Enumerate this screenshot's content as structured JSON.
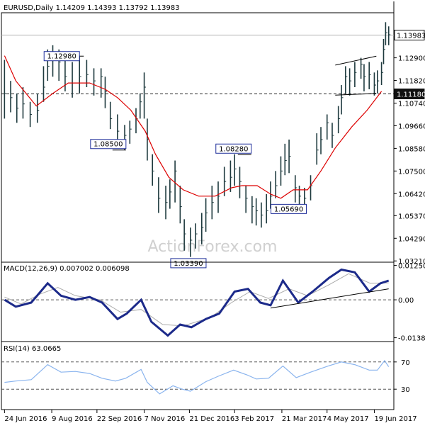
{
  "chart_data": [
    {
      "type": "ohlc-bar",
      "title": "EURUSD,Daily  1.14209 1.14393 1.13792 1.13983",
      "symbol": "EURUSD",
      "timeframe": "Daily",
      "last_bar": {
        "open": 1.14209,
        "high": 1.14393,
        "low": 1.13792,
        "close": 1.13983
      },
      "y_ticks": [
        "1.13983",
        "1.12900",
        "1.11820",
        "1.11180",
        "1.10740",
        "1.09660",
        "1.08580",
        "1.07500",
        "1.06420",
        "1.05370",
        "1.04290",
        "1.03210"
      ],
      "ylim": [
        1.0315,
        1.1505
      ],
      "horizontal_lines": [
        {
          "value": 1.13983,
          "label": "1.13983",
          "style": "solid-gray"
        },
        {
          "value": 1.1118,
          "label": "1.11180",
          "style": "dashed-black"
        }
      ],
      "annotations": [
        {
          "text": "1.12980",
          "value": 1.1298,
          "date": "2016-09-05"
        },
        {
          "text": "1.08500",
          "value": 1.085,
          "date": "2016-10-03"
        },
        {
          "text": "1.03390",
          "value": 1.0339,
          "date": "2016-12-20"
        },
        {
          "text": "1.08280",
          "value": 1.0828,
          "date": "2017-02-02"
        },
        {
          "text": "1.05690",
          "value": 1.0569,
          "date": "2017-03-09"
        }
      ],
      "moving_average": {
        "color": "#dd0000",
        "points": [
          [
            "2016-06-24",
            1.13
          ],
          [
            "2016-07-05",
            1.118
          ],
          [
            "2016-07-25",
            1.106
          ],
          [
            "2016-08-10",
            1.112
          ],
          [
            "2016-08-25",
            1.117
          ],
          [
            "2016-09-15",
            1.117
          ],
          [
            "2016-09-30",
            1.114
          ],
          [
            "2016-10-12",
            1.11
          ],
          [
            "2016-10-25",
            1.104
          ],
          [
            "2016-11-08",
            1.094
          ],
          [
            "2016-11-18",
            1.083
          ],
          [
            "2016-12-01",
            1.072
          ],
          [
            "2016-12-15",
            1.066
          ],
          [
            "2016-12-30",
            1.063
          ],
          [
            "2017-01-15",
            1.063
          ],
          [
            "2017-01-31",
            1.067
          ],
          [
            "2017-02-10",
            1.068
          ],
          [
            "2017-02-25",
            1.068
          ],
          [
            "2017-03-10",
            1.064
          ],
          [
            "2017-03-20",
            1.062
          ],
          [
            "2017-04-01",
            1.066
          ],
          [
            "2017-04-15",
            1.066
          ],
          [
            "2017-04-28",
            1.075
          ],
          [
            "2017-05-12",
            1.086
          ],
          [
            "2017-05-28",
            1.096
          ],
          [
            "2017-06-12",
            1.104
          ],
          [
            "2017-06-26",
            1.113
          ]
        ]
      },
      "price_bars": [
        [
          "2016-06-24",
          1.112,
          1.128,
          1.1
        ],
        [
          "2016-06-30",
          1.11,
          1.118,
          1.103
        ],
        [
          "2016-07-06",
          1.105,
          1.112,
          1.098
        ],
        [
          "2016-07-12",
          1.107,
          1.115,
          1.1
        ],
        [
          "2016-07-19",
          1.102,
          1.108,
          1.096
        ],
        [
          "2016-07-26",
          1.104,
          1.112,
          1.098
        ],
        [
          "2016-08-01",
          1.115,
          1.125,
          1.108
        ],
        [
          "2016-08-05",
          1.125,
          1.133,
          1.118
        ],
        [
          "2016-08-10",
          1.13,
          1.135,
          1.12
        ],
        [
          "2016-08-16",
          1.127,
          1.133,
          1.118
        ],
        [
          "2016-08-22",
          1.12,
          1.128,
          1.113
        ],
        [
          "2016-08-29",
          1.117,
          1.127,
          1.11
        ],
        [
          "2016-09-05",
          1.12,
          1.13,
          1.112
        ],
        [
          "2016-09-12",
          1.121,
          1.128,
          1.115
        ],
        [
          "2016-09-19",
          1.118,
          1.124,
          1.111
        ],
        [
          "2016-09-26",
          1.12,
          1.124,
          1.11
        ],
        [
          "2016-09-30",
          1.113,
          1.12,
          1.105
        ],
        [
          "2016-10-05",
          1.1,
          1.108,
          1.095
        ],
        [
          "2016-10-12",
          1.094,
          1.102,
          1.087
        ],
        [
          "2016-10-19",
          1.092,
          1.097,
          1.085
        ],
        [
          "2016-10-24",
          1.095,
          1.099,
          1.088
        ],
        [
          "2016-10-30",
          1.1,
          1.105,
          1.093
        ],
        [
          "2016-11-03",
          1.108,
          1.112,
          1.1
        ],
        [
          "2016-11-07",
          1.115,
          1.122,
          1.1
        ],
        [
          "2016-11-10",
          1.09,
          1.1,
          1.08
        ],
        [
          "2016-11-15",
          1.075,
          1.083,
          1.068
        ],
        [
          "2016-11-21",
          1.062,
          1.072,
          1.055
        ],
        [
          "2016-11-28",
          1.06,
          1.068,
          1.052
        ],
        [
          "2016-12-02",
          1.065,
          1.071,
          1.057
        ],
        [
          "2016-12-07",
          1.075,
          1.08,
          1.06
        ],
        [
          "2016-12-12",
          1.058,
          1.068,
          1.05
        ],
        [
          "2016-12-16",
          1.045,
          1.052,
          1.037
        ],
        [
          "2016-12-22",
          1.042,
          1.048,
          1.034
        ],
        [
          "2016-12-27",
          1.045,
          1.05,
          1.038
        ],
        [
          "2017-01-02",
          1.048,
          1.055,
          1.04
        ],
        [
          "2017-01-06",
          1.055,
          1.062,
          1.046
        ],
        [
          "2017-01-12",
          1.06,
          1.068,
          1.052
        ],
        [
          "2017-01-18",
          1.063,
          1.07,
          1.055
        ],
        [
          "2017-01-24",
          1.07,
          1.077,
          1.063
        ],
        [
          "2017-01-30",
          1.072,
          1.08,
          1.065
        ],
        [
          "2017-02-03",
          1.076,
          1.083,
          1.068
        ],
        [
          "2017-02-08",
          1.07,
          1.077,
          1.062
        ],
        [
          "2017-02-14",
          1.062,
          1.068,
          1.055
        ],
        [
          "2017-02-20",
          1.058,
          1.063,
          1.05
        ],
        [
          "2017-02-24",
          1.056,
          1.062,
          1.049
        ],
        [
          "2017-03-01",
          1.054,
          1.06,
          1.048
        ],
        [
          "2017-03-06",
          1.056,
          1.064,
          1.05
        ],
        [
          "2017-03-10",
          1.063,
          1.07,
          1.057
        ],
        [
          "2017-03-15",
          1.068,
          1.075,
          1.062
        ],
        [
          "2017-03-20",
          1.075,
          1.082,
          1.068
        ],
        [
          "2017-03-24",
          1.08,
          1.088,
          1.073
        ],
        [
          "2017-03-28",
          1.082,
          1.09,
          1.074
        ],
        [
          "2017-04-03",
          1.067,
          1.073,
          1.06
        ],
        [
          "2017-04-07",
          1.063,
          1.068,
          1.058
        ],
        [
          "2017-04-12",
          1.062,
          1.067,
          1.057
        ],
        [
          "2017-04-18",
          1.068,
          1.073,
          1.061
        ],
        [
          "2017-04-24",
          1.085,
          1.093,
          1.078
        ],
        [
          "2017-04-28",
          1.09,
          1.096,
          1.083
        ],
        [
          "2017-05-04",
          1.098,
          1.102,
          1.09
        ],
        [
          "2017-05-09",
          1.092,
          1.098,
          1.086
        ],
        [
          "2017-05-15",
          1.1,
          1.106,
          1.093
        ],
        [
          "2017-05-18",
          1.11,
          1.116,
          1.102
        ],
        [
          "2017-05-22",
          1.12,
          1.125,
          1.112
        ],
        [
          "2017-05-26",
          1.118,
          1.124,
          1.111
        ],
        [
          "2017-05-31",
          1.122,
          1.127,
          1.115
        ],
        [
          "2017-06-06",
          1.126,
          1.129,
          1.119
        ],
        [
          "2017-06-09",
          1.12,
          1.126,
          1.113
        ],
        [
          "2017-06-14",
          1.121,
          1.127,
          1.114
        ],
        [
          "2017-06-19",
          1.116,
          1.122,
          1.111
        ],
        [
          "2017-06-22",
          1.118,
          1.123,
          1.112
        ],
        [
          "2017-06-26",
          1.122,
          1.127,
          1.116
        ],
        [
          "2017-06-28",
          1.133,
          1.138,
          1.126
        ],
        [
          "2017-06-30",
          1.141,
          1.146,
          1.135
        ],
        [
          "2017-07-03",
          1.14,
          1.144,
          1.135
        ]
      ],
      "trend_lines": [
        {
          "points": [
            [
              "2017-05-12",
              1.1255
            ],
            [
              "2017-06-21",
              1.1298
            ]
          ]
        },
        {
          "points": [
            [
              "2017-05-12",
              1.1112
            ],
            [
              "2017-06-21",
              1.112
            ]
          ]
        }
      ]
    },
    {
      "type": "line",
      "title": "MACD(12,26,9) 0.007002 0.006098",
      "series": [
        {
          "name": "MACD",
          "color": "#1c2a8a",
          "points": [
            [
              "2016-06-24",
              0.0
            ],
            [
              "2016-07-05",
              -0.0025
            ],
            [
              "2016-07-20",
              -0.001
            ],
            [
              "2016-08-05",
              0.006
            ],
            [
              "2016-08-18",
              0.0015
            ],
            [
              "2016-09-01",
              0.0
            ],
            [
              "2016-09-15",
              0.001
            ],
            [
              "2016-09-27",
              -0.001
            ],
            [
              "2016-10-12",
              -0.007
            ],
            [
              "2016-10-21",
              -0.005
            ],
            [
              "2016-11-04",
              0.0
            ],
            [
              "2016-11-14",
              -0.008
            ],
            [
              "2016-11-30",
              -0.013
            ],
            [
              "2016-12-12",
              -0.009
            ],
            [
              "2016-12-23",
              -0.01
            ],
            [
              "2017-01-06",
              -0.007
            ],
            [
              "2017-01-19",
              -0.005
            ],
            [
              "2017-02-03",
              0.003
            ],
            [
              "2017-02-16",
              0.004
            ],
            [
              "2017-02-28",
              -0.001
            ],
            [
              "2017-03-10",
              -0.002
            ],
            [
              "2017-03-22",
              0.007
            ],
            [
              "2017-04-06",
              -0.001
            ],
            [
              "2017-04-20",
              0.003
            ],
            [
              "2017-05-06",
              0.008
            ],
            [
              "2017-05-18",
              0.011
            ],
            [
              "2017-05-31",
              0.01
            ],
            [
              "2017-06-14",
              0.003
            ],
            [
              "2017-06-25",
              0.006
            ],
            [
              "2017-07-03",
              0.007
            ]
          ]
        },
        {
          "name": "Signal",
          "color": "#aaaaaa",
          "points": [
            [
              "2016-06-24",
              0.001
            ],
            [
              "2016-07-10",
              -0.0015
            ],
            [
              "2016-07-28",
              0.002
            ],
            [
              "2016-08-15",
              0.0045
            ],
            [
              "2016-09-01",
              0.0015
            ],
            [
              "2016-09-25",
              0.0
            ],
            [
              "2016-10-15",
              -0.0045
            ],
            [
              "2016-11-04",
              -0.0035
            ],
            [
              "2016-11-25",
              -0.009
            ],
            [
              "2016-12-15",
              -0.0095
            ],
            [
              "2017-01-10",
              -0.0065
            ],
            [
              "2017-01-31",
              -0.001
            ],
            [
              "2017-02-18",
              0.003
            ],
            [
              "2017-03-08",
              0.0005
            ],
            [
              "2017-03-28",
              0.004
            ],
            [
              "2017-04-15",
              0.0015
            ],
            [
              "2017-05-06",
              0.0055
            ],
            [
              "2017-05-25",
              0.0095
            ],
            [
              "2017-06-15",
              0.006
            ],
            [
              "2017-07-03",
              0.0062
            ]
          ]
        }
      ],
      "y_ticks": [
        "0.012509",
        "0.00",
        "-0.013813"
      ],
      "ylim": [
        -0.0152,
        0.0137
      ],
      "zero_line": 0.0,
      "trend_lines": [
        {
          "points": [
            [
              "2017-03-10",
              -0.003
            ],
            [
              "2017-07-03",
              0.004
            ]
          ]
        }
      ]
    },
    {
      "type": "line",
      "title": "RSI(14) 63.0665",
      "series": [
        {
          "name": "RSI",
          "color": "#8ab4ee",
          "points": [
            [
              "2016-06-24",
              40
            ],
            [
              "2016-07-05",
              42
            ],
            [
              "2016-07-20",
              44
            ],
            [
              "2016-08-05",
              66
            ],
            [
              "2016-08-18",
              55
            ],
            [
              "2016-09-01",
              56
            ],
            [
              "2016-09-15",
              53
            ],
            [
              "2016-09-27",
              46
            ],
            [
              "2016-10-10",
              42
            ],
            [
              "2016-10-20",
              46
            ],
            [
              "2016-11-04",
              59
            ],
            [
              "2016-11-10",
              40
            ],
            [
              "2016-11-22",
              23
            ],
            [
              "2016-12-05",
              35
            ],
            [
              "2016-12-14",
              30
            ],
            [
              "2016-12-22",
              27
            ],
            [
              "2017-01-06",
              41
            ],
            [
              "2017-01-18",
              49
            ],
            [
              "2017-02-02",
              58
            ],
            [
              "2017-02-15",
              51
            ],
            [
              "2017-02-24",
              45
            ],
            [
              "2017-03-08",
              46
            ],
            [
              "2017-03-22",
              64
            ],
            [
              "2017-04-04",
              47
            ],
            [
              "2017-04-18",
              55
            ],
            [
              "2017-05-05",
              64
            ],
            [
              "2017-05-18",
              70
            ],
            [
              "2017-05-31",
              66
            ],
            [
              "2017-06-14",
              58
            ],
            [
              "2017-06-22",
              58
            ],
            [
              "2017-06-29",
              72
            ],
            [
              "2017-07-03",
              63
            ]
          ]
        }
      ],
      "y_ticks": [
        "70",
        "30"
      ],
      "levels": [
        70,
        30
      ],
      "ylim": [
        0,
        100
      ]
    }
  ],
  "x_ticks": [
    [
      "2016-06-24",
      "24 Jun 2016"
    ],
    [
      "2016-08-09",
      "9 Aug 2016"
    ],
    [
      "2016-09-22",
      "22 Sep 2016"
    ],
    [
      "2016-11-07",
      "7 Nov 2016"
    ],
    [
      "2016-12-21",
      "21 Dec 2016"
    ],
    [
      "2017-02-03",
      "3 Feb 2017"
    ],
    [
      "2017-03-21",
      "21 Mar 2017"
    ],
    [
      "2017-05-04",
      "4 May 2017"
    ],
    [
      "2017-06-19",
      "19 Jun 2017"
    ]
  ],
  "x_range": [
    "2016-06-21",
    "2017-07-08"
  ],
  "watermark": "ActionForex.com",
  "colors": {
    "price": "#1e3a3e",
    "ma": "#dd0000",
    "macd": "#1c2a8a",
    "signal": "#aaaaaa",
    "rsi": "#8ab4ee",
    "frame": "#000000"
  }
}
